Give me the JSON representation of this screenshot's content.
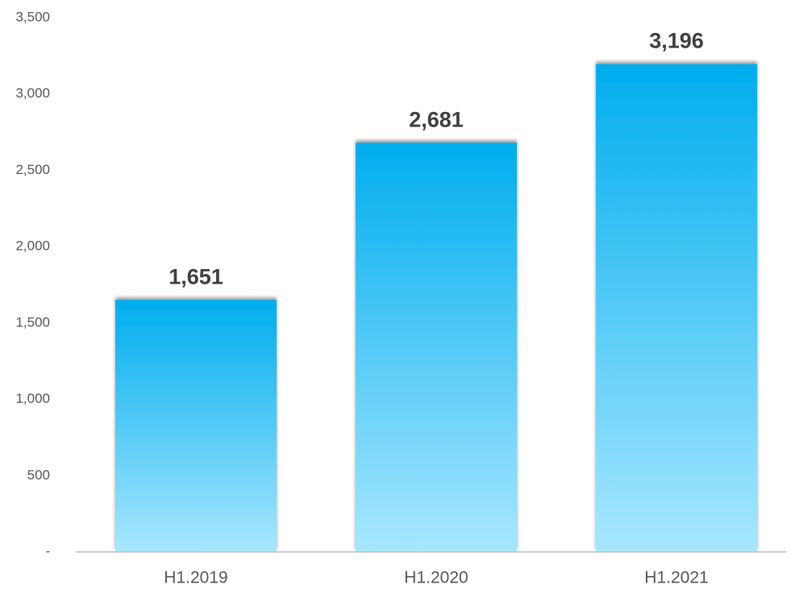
{
  "chart_data": {
    "type": "bar",
    "categories": [
      "H1.2019",
      "H1.2020",
      "H1.2021"
    ],
    "values": [
      1651,
      2681,
      3196
    ],
    "value_labels": [
      "1,651",
      "2,681",
      "3,196"
    ],
    "color": "#00adee",
    "ylim": [
      0,
      3500
    ],
    "yticks": [
      {
        "value": 0,
        "label": "-"
      },
      500,
      {
        "value": 1000,
        "label": "1,000"
      },
      {
        "value": 1500,
        "label": "1,500"
      },
      {
        "value": 2000,
        "label": "2,000"
      },
      {
        "value": 2500,
        "label": "2,500"
      },
      {
        "value": 3000,
        "label": "3,000"
      },
      {
        "value": 3500,
        "label": "3,500"
      }
    ],
    "grid": false
  }
}
